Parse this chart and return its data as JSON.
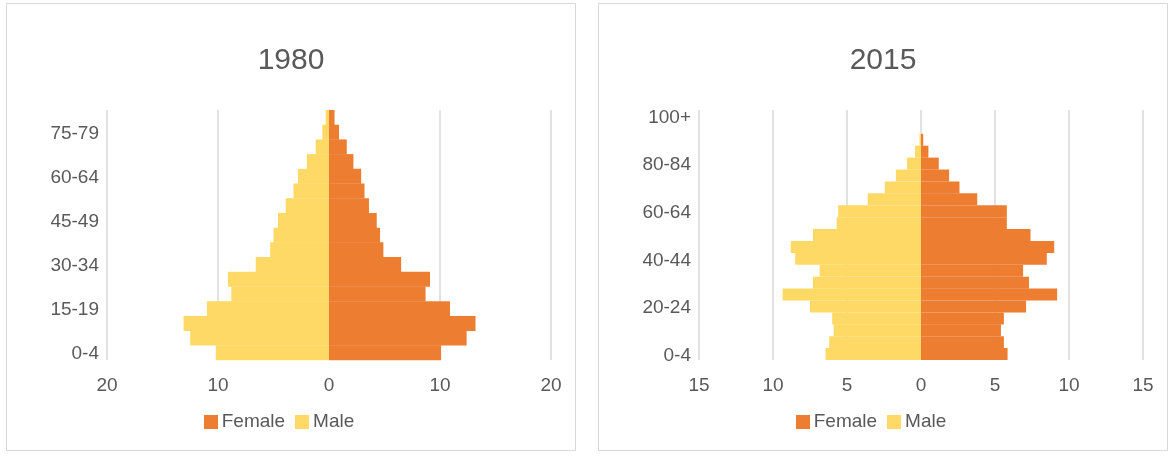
{
  "chart_data": [
    {
      "type": "bar",
      "orientation": "horizontal",
      "stacked": true,
      "title": "1980",
      "categories": [
        null,
        "75-79",
        null,
        null,
        "60-64",
        null,
        null,
        "45-49",
        null,
        null,
        "30-34",
        null,
        null,
        "15-19",
        null,
        null,
        "0-4"
      ],
      "series": [
        {
          "name": "Female",
          "color": "#ed7d31",
          "values": [
            0.5,
            0.9,
            1.6,
            2.2,
            2.9,
            3.2,
            3.6,
            4.3,
            4.6,
            4.9,
            6.5,
            9.1,
            8.7,
            10.9,
            13.2,
            12.4,
            10.1
          ]
        },
        {
          "name": "Male",
          "color": "#ffd966",
          "values": [
            -0.3,
            -0.6,
            -1.2,
            -2.0,
            -2.8,
            -3.2,
            -3.9,
            -4.6,
            -5.0,
            -5.3,
            -6.6,
            -9.1,
            -8.8,
            -11.0,
            -13.1,
            -12.5,
            -10.2
          ]
        }
      ],
      "xlim": [
        -20,
        20
      ],
      "xticks": [
        {
          "value": -20,
          "label": "20"
        },
        {
          "value": -10,
          "label": "10"
        },
        0,
        10,
        20
      ],
      "grid": "x",
      "legend": "bottom"
    },
    {
      "type": "bar",
      "orientation": "horizontal",
      "stacked": true,
      "title": "2015",
      "categories": [
        "100+",
        null,
        null,
        null,
        "80-84",
        null,
        null,
        null,
        "60-64",
        null,
        null,
        null,
        "40-44",
        null,
        null,
        null,
        "20-24",
        null,
        null,
        null,
        "0-4"
      ],
      "series": [
        {
          "name": "Female",
          "color": "#ed7d31",
          "values": [
            0,
            0,
            0.15,
            0.5,
            1.2,
            1.9,
            2.6,
            3.8,
            5.8,
            5.8,
            7.4,
            9.0,
            8.5,
            6.9,
            7.3,
            9.2,
            7.1,
            5.6,
            5.4,
            5.6,
            5.85
          ]
        },
        {
          "name": "Male",
          "color": "#ffd966",
          "values": [
            0,
            0,
            -0.1,
            -0.4,
            -0.95,
            -1.7,
            -2.45,
            -3.6,
            -5.6,
            -5.7,
            -7.3,
            -8.8,
            -8.5,
            -6.85,
            -7.3,
            -9.35,
            -7.5,
            -6.0,
            -5.9,
            -6.2,
            -6.45
          ]
        }
      ],
      "xlim": [
        -15,
        15
      ],
      "xticks": [
        {
          "value": -15,
          "label": "15"
        },
        {
          "value": -10,
          "label": "10"
        },
        {
          "value": -5,
          "label": "5"
        },
        0,
        5,
        10,
        15
      ],
      "grid": "x",
      "legend": "bottom"
    }
  ]
}
